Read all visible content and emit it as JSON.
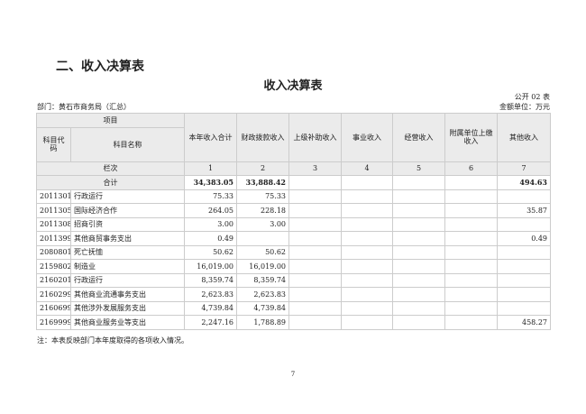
{
  "section_title": "二、收入决算表",
  "table_title": "收入决算表",
  "form_no": "公开 02 表",
  "department": "部门：黄石市商务局（汇总）",
  "unit": "金额单位：万元",
  "headers": {
    "item": "项目",
    "code": "科目代码",
    "name": "科目名称",
    "cols": [
      "本年收入合计",
      "财政拨款收入",
      "上级补助收入",
      "事业收入",
      "经营收入",
      "附属单位上缴收入",
      "其他收入"
    ],
    "row_index_label": "栏次",
    "row_index": [
      "1",
      "2",
      "3",
      "4",
      "5",
      "6",
      "7"
    ]
  },
  "total": {
    "label": "合计",
    "values": [
      "34,383.05",
      "33,888.42",
      "",
      "",
      "",
      "",
      "494.63"
    ]
  },
  "rows": [
    {
      "code": "2011301",
      "name": "行政运行",
      "values": [
        "75.33",
        "75.33",
        "",
        "",
        "",
        "",
        ""
      ]
    },
    {
      "code": "2011305",
      "name": "国际经济合作",
      "values": [
        "264.05",
        "228.18",
        "",
        "",
        "",
        "",
        "35.87"
      ]
    },
    {
      "code": "2011308",
      "name": "招商引资",
      "values": [
        "3.00",
        "3.00",
        "",
        "",
        "",
        "",
        ""
      ]
    },
    {
      "code": "2011399",
      "name": "其他商贸事务支出",
      "values": [
        "0.49",
        "",
        "",
        "",
        "",
        "",
        "0.49"
      ]
    },
    {
      "code": "2080801",
      "name": "死亡抚恤",
      "values": [
        "50.62",
        "50.62",
        "",
        "",
        "",
        "",
        ""
      ]
    },
    {
      "code": "2159802",
      "name": "制造业",
      "values": [
        "16,019.00",
        "16,019.00",
        "",
        "",
        "",
        "",
        ""
      ]
    },
    {
      "code": "2160201",
      "name": "行政运行",
      "values": [
        "8,359.74",
        "8,359.74",
        "",
        "",
        "",
        "",
        ""
      ]
    },
    {
      "code": "2160299",
      "name": "其他商业流通事务支出",
      "values": [
        "2,623.83",
        "2,623.83",
        "",
        "",
        "",
        "",
        ""
      ]
    },
    {
      "code": "2160699",
      "name": "其他涉外发展服务支出",
      "values": [
        "4,739.84",
        "4,739.84",
        "",
        "",
        "",
        "",
        ""
      ]
    },
    {
      "code": "2169999",
      "name": "其他商业服务业等支出",
      "values": [
        "2,247.16",
        "1,788.89",
        "",
        "",
        "",
        "",
        "458.27"
      ]
    }
  ],
  "note": "注：本表反映部门本年度取得的各项收入情况。",
  "page_number": "7"
}
